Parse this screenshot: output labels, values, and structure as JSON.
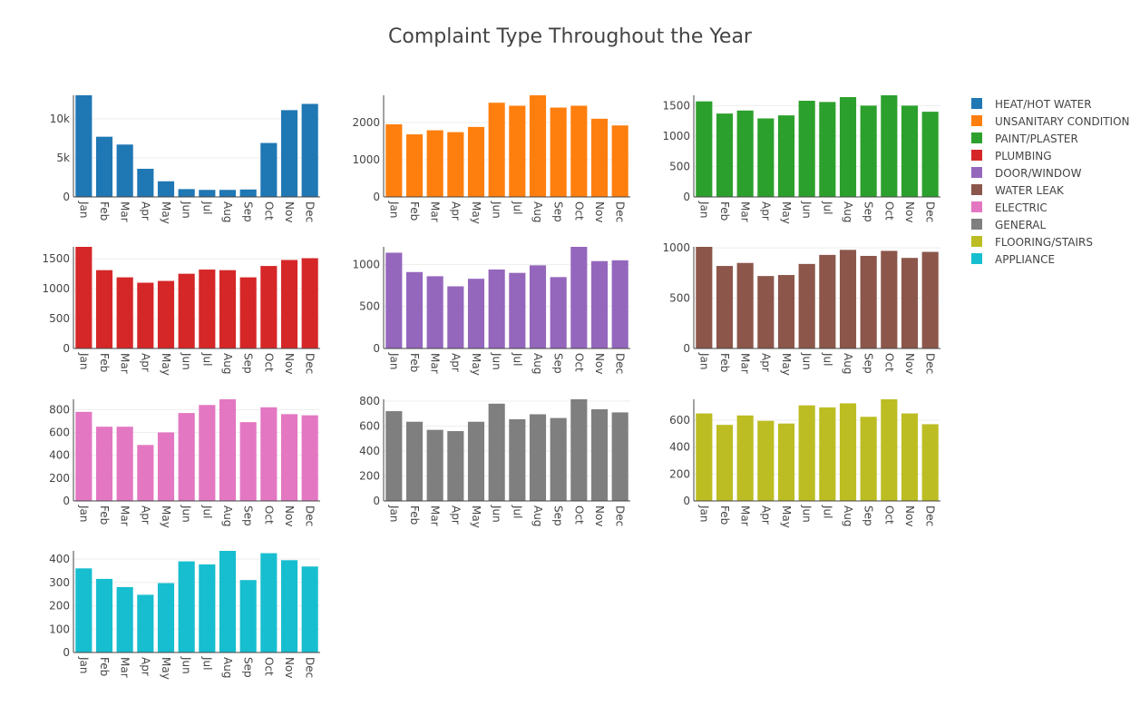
{
  "chart_data": {
    "type": "bar",
    "title": "Complaint Type Throughout the Year",
    "categories": [
      "Jan",
      "Feb",
      "Mar",
      "Apr",
      "May",
      "Jun",
      "Jul",
      "Aug",
      "Sep",
      "Oct",
      "Nov",
      "Dec"
    ],
    "legend_position": "top-right",
    "grid": true,
    "series": [
      {
        "name": "HEAT/HOT WATER",
        "color": "#1f77b4",
        "values": [
          13000,
          7700,
          6700,
          3600,
          2000,
          1000,
          900,
          900,
          950,
          6900,
          11100,
          11900
        ],
        "ylim": [
          0,
          13000
        ],
        "yticks": [
          0,
          5000,
          10000
        ],
        "ytick_labels": [
          "0",
          "5k",
          "10k"
        ]
      },
      {
        "name": "UNSANITARY CONDITION",
        "color": "#ff7f0e",
        "values": [
          1950,
          1680,
          1790,
          1740,
          1880,
          2530,
          2450,
          2730,
          2400,
          2450,
          2100,
          1920
        ],
        "ylim": [
          0,
          2730
        ],
        "yticks": [
          0,
          1000,
          2000
        ],
        "ytick_labels": [
          "0",
          "1000",
          "2000"
        ]
      },
      {
        "name": "PAINT/PLASTER",
        "color": "#2ca02c",
        "values": [
          1570,
          1370,
          1420,
          1290,
          1340,
          1580,
          1560,
          1640,
          1500,
          1670,
          1500,
          1400
        ],
        "ylim": [
          0,
          1670
        ],
        "yticks": [
          0,
          500,
          1000,
          1500
        ],
        "ytick_labels": [
          "0",
          "500",
          "1000",
          "1500"
        ]
      },
      {
        "name": "PLUMBING",
        "color": "#d62728",
        "values": [
          1700,
          1310,
          1190,
          1100,
          1130,
          1250,
          1320,
          1310,
          1190,
          1380,
          1480,
          1510
        ],
        "ylim": [
          0,
          1700
        ],
        "yticks": [
          0,
          500,
          1000,
          1500
        ],
        "ytick_labels": [
          "0",
          "500",
          "1000",
          "1500"
        ]
      },
      {
        "name": "DOOR/WINDOW",
        "color": "#9467bd",
        "values": [
          1140,
          910,
          860,
          740,
          830,
          940,
          900,
          990,
          850,
          1210,
          1040,
          1050
        ],
        "ylim": [
          0,
          1210
        ],
        "yticks": [
          0,
          500,
          1000
        ],
        "ytick_labels": [
          "0",
          "500",
          "1000"
        ]
      },
      {
        "name": "WATER LEAK",
        "color": "#8c564b",
        "values": [
          1010,
          820,
          850,
          720,
          730,
          840,
          930,
          980,
          920,
          970,
          900,
          960
        ],
        "ylim": [
          0,
          1010
        ],
        "yticks": [
          0,
          500,
          1000
        ],
        "ytick_labels": [
          "0",
          "500",
          "1000"
        ]
      },
      {
        "name": "ELECTRIC",
        "color": "#e377c2",
        "values": [
          780,
          650,
          650,
          490,
          600,
          770,
          840,
          890,
          690,
          820,
          760,
          750
        ],
        "ylim": [
          0,
          890
        ],
        "yticks": [
          0,
          200,
          400,
          600,
          800
        ],
        "ytick_labels": [
          "0",
          "200",
          "400",
          "600",
          "800"
        ]
      },
      {
        "name": "GENERAL",
        "color": "#7f7f7f",
        "values": [
          720,
          635,
          570,
          560,
          635,
          780,
          655,
          695,
          665,
          815,
          735,
          710
        ],
        "ylim": [
          0,
          815
        ],
        "yticks": [
          0,
          200,
          400,
          600,
          800
        ],
        "ytick_labels": [
          "0",
          "200",
          "400",
          "600",
          "800"
        ]
      },
      {
        "name": "FLOORING/STAIRS",
        "color": "#bcbd22",
        "values": [
          650,
          565,
          635,
          595,
          575,
          710,
          695,
          725,
          625,
          755,
          650,
          570
        ],
        "ylim": [
          0,
          755
        ],
        "yticks": [
          0,
          200,
          400,
          600
        ],
        "ytick_labels": [
          "0",
          "200",
          "400",
          "600"
        ]
      },
      {
        "name": "APPLIANCE",
        "color": "#17becf",
        "values": [
          360,
          315,
          280,
          247,
          297,
          390,
          377,
          435,
          310,
          425,
          395,
          368
        ],
        "ylim": [
          0,
          435
        ],
        "yticks": [
          0,
          100,
          200,
          300,
          400
        ],
        "ytick_labels": [
          "0",
          "100",
          "200",
          "300",
          "400"
        ]
      }
    ]
  }
}
